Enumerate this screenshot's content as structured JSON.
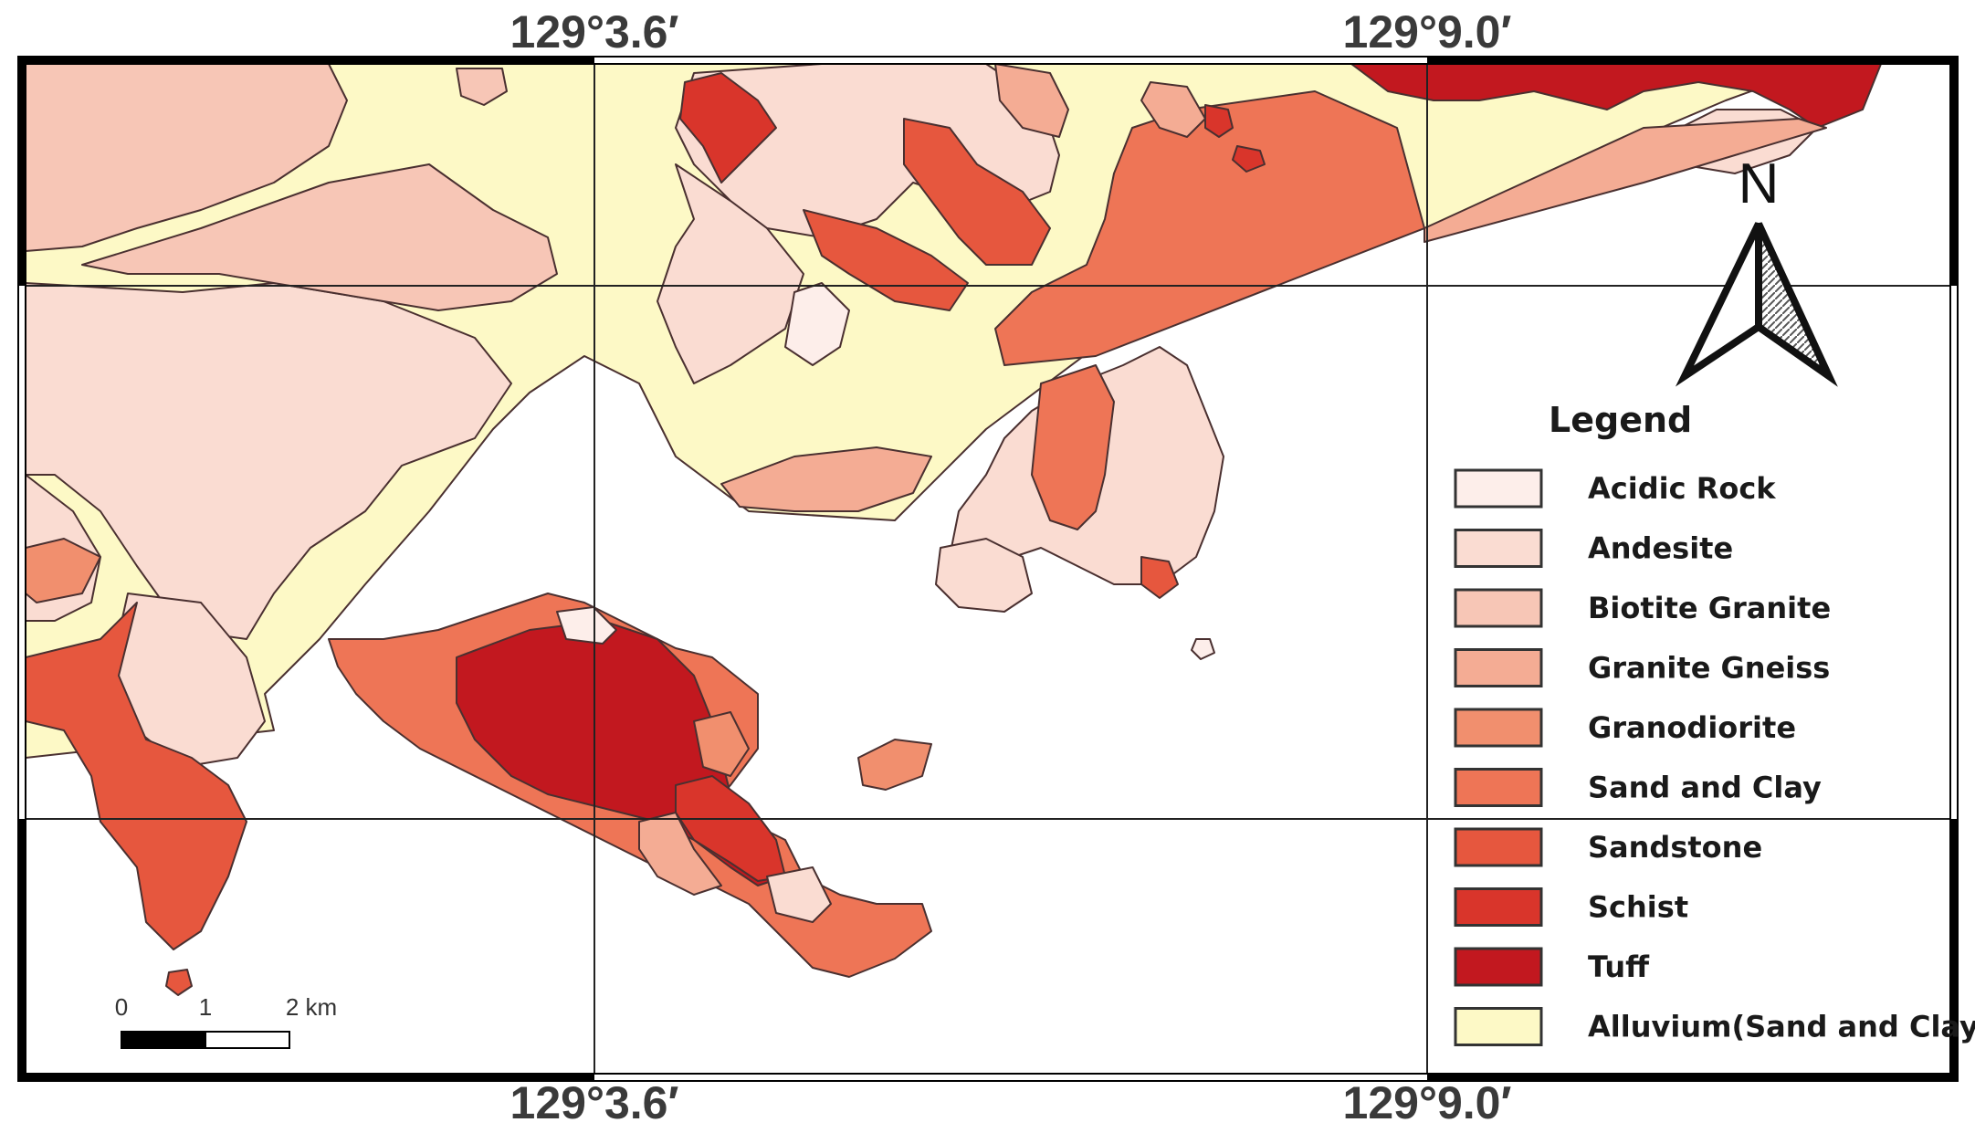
{
  "coords": {
    "top_left": "129°3.6′",
    "top_right": "129°9.0′",
    "bottom_left": "129°3.6′",
    "bottom_right": "129°9.0′"
  },
  "north": "N",
  "legend": {
    "title": "Legend",
    "items": [
      {
        "label": "Acidic Rock",
        "color": "#fdeeea"
      },
      {
        "label": "Andesite",
        "color": "#fadcd2"
      },
      {
        "label": "Biotite Granite",
        "color": "#f7c6b6"
      },
      {
        "label": "Granite Gneiss",
        "color": "#f4ac94"
      },
      {
        "label": "Granodiorite",
        "color": "#f18f6e"
      },
      {
        "label": "Sand and Clay",
        "color": "#ee7556"
      },
      {
        "label": "Sandstone",
        "color": "#e6573e"
      },
      {
        "label": "Schist",
        "color": "#d9352b"
      },
      {
        "label": "Tuff",
        "color": "#c2181f"
      },
      {
        "label": "Alluvium(Sand and Clay)",
        "color": "#fdf9c6"
      }
    ]
  },
  "scale": {
    "ticks": [
      "0",
      "1",
      "2 km"
    ]
  }
}
